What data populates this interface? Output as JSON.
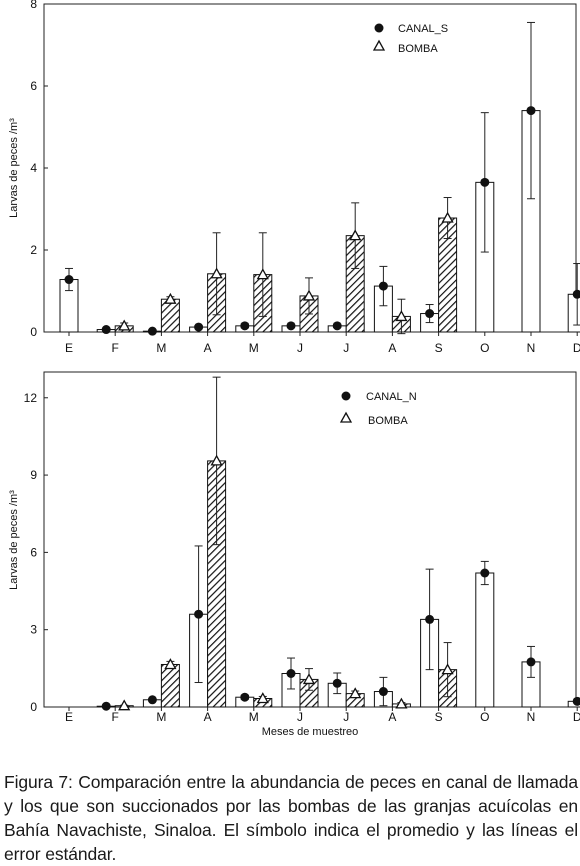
{
  "chart_data": [
    {
      "type": "bar",
      "categories": [
        "E",
        "F",
        "M",
        "A",
        "M",
        "J",
        "J",
        "A",
        "S",
        "O",
        "N",
        "D"
      ],
      "ylabel": "Larvas de peces /m³",
      "xlabel": "",
      "ylim": [
        0,
        8
      ],
      "yticks": [
        0,
        2,
        4,
        6,
        8
      ],
      "legend_position": "top-right",
      "series": [
        {
          "name": "CANAL_S",
          "marker": "filled-circle",
          "bar_fill": "white",
          "values": [
            1.28,
            0.06,
            0.02,
            0.12,
            0.15,
            0.15,
            0.15,
            1.12,
            0.45,
            3.65,
            5.4,
            0.92
          ],
          "error": [
            0.27,
            0.02,
            0.01,
            0.03,
            0.05,
            0.04,
            0.04,
            0.48,
            0.22,
            1.7,
            2.15,
            0.75
          ]
        },
        {
          "name": "BOMBA",
          "marker": "open-triangle",
          "bar_fill": "hatched",
          "values": [
            null,
            0.15,
            0.8,
            1.42,
            1.4,
            0.88,
            2.35,
            0.38,
            2.78,
            null,
            null,
            null
          ],
          "error": [
            null,
            0.07,
            0.06,
            1.0,
            1.02,
            0.44,
            0.8,
            0.42,
            0.5,
            null,
            null,
            null
          ]
        }
      ]
    },
    {
      "type": "bar",
      "categories": [
        "E",
        "F",
        "M",
        "A",
        "M",
        "J",
        "J",
        "A",
        "S",
        "O",
        "N",
        "D"
      ],
      "ylabel": "Larvas de peces /m³",
      "xlabel": "Meses de muestreo",
      "ylim": [
        0,
        13
      ],
      "yticks": [
        0,
        3,
        6,
        9,
        12
      ],
      "legend_position": "top-right",
      "series": [
        {
          "name": "CANAL_N",
          "marker": "filled-circle",
          "bar_fill": "white",
          "values": [
            null,
            0.03,
            0.28,
            3.6,
            0.38,
            1.3,
            0.92,
            0.6,
            3.4,
            5.2,
            1.75,
            0.22
          ],
          "error": [
            null,
            0.01,
            0.05,
            2.65,
            0.08,
            0.6,
            0.4,
            0.55,
            1.95,
            0.45,
            0.6,
            0.05
          ]
        },
        {
          "name": "BOMBA",
          "marker": "open-triangle",
          "bar_fill": "hatched",
          "values": [
            null,
            0.05,
            1.65,
            9.55,
            0.33,
            1.07,
            0.52,
            0.12,
            1.45,
            null,
            null,
            null
          ],
          "error": [
            null,
            0.02,
            0.12,
            3.25,
            0.08,
            0.42,
            0.1,
            0.05,
            1.05,
            null,
            null,
            null
          ]
        }
      ]
    }
  ],
  "caption": "Figura 7: Comparación entre la abundancia de peces en canal de llamada y los que son succionados por las bombas de las granjas acuícolas en Bahía Navachiste, Sinaloa. El símbolo indica el promedio y las líneas el error estándar."
}
